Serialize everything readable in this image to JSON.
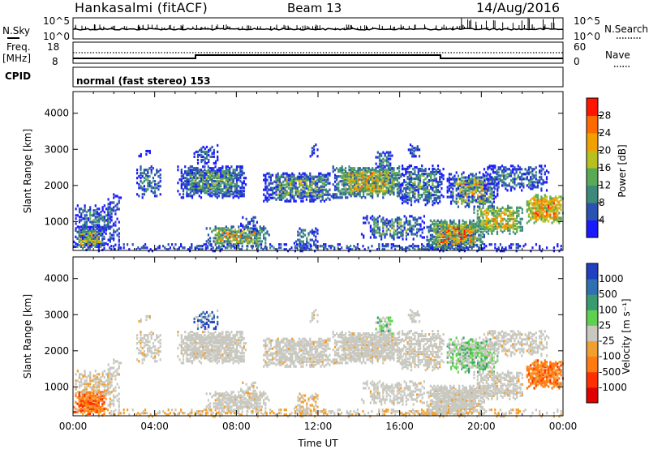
{
  "header": {
    "station": "Hankasalmi (fitACF)",
    "beam": "Beam 13",
    "date": "14/Aug/2016"
  },
  "summary_panel": {
    "nsky_label": "N.Sky",
    "nsky_ticks": [
      "10^5",
      "10^0"
    ],
    "nsearch_label": "N.Search",
    "nsearch_ticks": [
      "10^5",
      "10^0"
    ],
    "freq_label_1": "Freq.",
    "freq_label_2": "[MHz]",
    "freq_ticks": [
      "18",
      "8"
    ],
    "nave_label": "Nave",
    "nave_ticks": [
      "60",
      "0"
    ],
    "cpid_label": "CPID",
    "cpid_text": "normal (fast stereo) 153"
  },
  "chart_data": [
    {
      "type": "heatmap",
      "name": "power",
      "ylabel": "Slant Range [km]",
      "yticks": [
        "1000",
        "2000",
        "3000",
        "4000"
      ],
      "ylim": [
        200,
        4600
      ],
      "xlim": [
        0,
        24
      ],
      "colorbar": {
        "label": "Power [dB]",
        "ticks": [
          "4",
          "8",
          "12",
          "16",
          "20",
          "24",
          "28"
        ],
        "colors": [
          "#1a1aff",
          "#2a52b0",
          "#3d8a7a",
          "#5aaa55",
          "#b8c020",
          "#f0a000",
          "#ff6a00",
          "#ff1500"
        ]
      }
    },
    {
      "type": "heatmap",
      "name": "velocity",
      "ylabel": "Slant Range [km]",
      "yticks": [
        "1000",
        "2000",
        "3000",
        "4000"
      ],
      "ylim": [
        200,
        4600
      ],
      "xlim": [
        0,
        24
      ],
      "xlabel": "Time UT",
      "xticks": [
        "00:00",
        "04:00",
        "08:00",
        "12:00",
        "16:00",
        "20:00",
        "00:00"
      ],
      "colorbar": {
        "label": "Velocity [m s⁻¹]",
        "ticks": [
          "1000",
          "500",
          "100",
          "25",
          "-25",
          "-100",
          "-500",
          "-1000"
        ],
        "colors": [
          "#2040c0",
          "#3070b0",
          "#3a9a70",
          "#60d050",
          "#c8c8c0",
          "#f0a030",
          "#ff7a10",
          "#ff3000",
          "#e00000"
        ]
      }
    }
  ]
}
